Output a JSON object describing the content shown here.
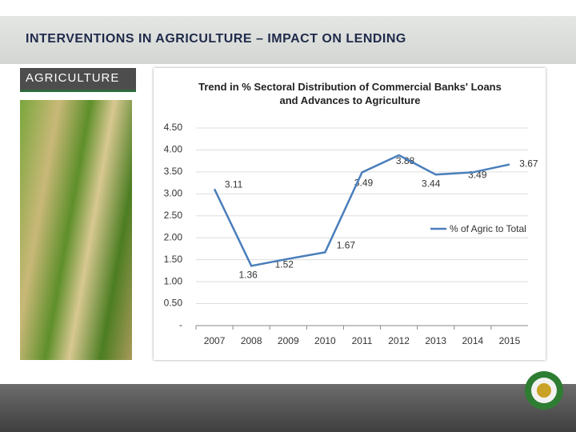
{
  "header": {
    "title": "INTERVENTIONS IN AGRICULTURE – IMPACT ON LENDING"
  },
  "sidebar": {
    "label": "AGRICULTURE"
  },
  "chart_data": {
    "type": "line",
    "title": "Trend in % Sectoral Distribution of Commercial Banks' Loans and Advances to Agriculture",
    "categories": [
      "2007",
      "2008",
      "2009",
      "2010",
      "2011",
      "2012",
      "2013",
      "2014",
      "2015"
    ],
    "series": [
      {
        "name": "% of Agric to Total",
        "color": "#4a7ebb",
        "values": [
          3.11,
          1.36,
          1.52,
          1.67,
          3.49,
          3.88,
          3.44,
          3.49,
          3.67
        ]
      }
    ],
    "ylim": [
      0,
      4.5
    ],
    "yticks": [
      {
        "value": 0,
        "label": "-"
      },
      {
        "value": 0.5,
        "label": "0.50"
      },
      {
        "value": 1,
        "label": "1.00"
      },
      {
        "value": 1.5,
        "label": "1.50"
      },
      {
        "value": 2,
        "label": "2.00"
      },
      {
        "value": 2.5,
        "label": "2.50"
      },
      {
        "value": 3,
        "label": "3.00"
      },
      {
        "value": 3.5,
        "label": "3.50"
      },
      {
        "value": 4,
        "label": "4.00"
      },
      {
        "value": 4.5,
        "label": "4.50"
      }
    ],
    "grid": true,
    "legend": "right"
  }
}
